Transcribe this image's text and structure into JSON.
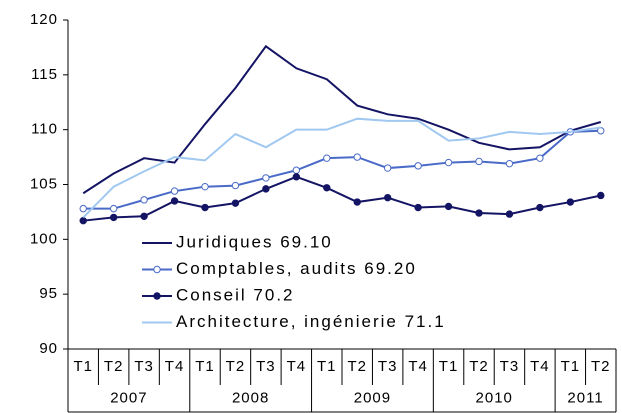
{
  "chart_data": {
    "type": "line",
    "categories": [
      "T1",
      "T2",
      "T3",
      "T4",
      "T1",
      "T2",
      "T3",
      "T4",
      "T1",
      "T2",
      "T3",
      "T4",
      "T1",
      "T2",
      "T3",
      "T4",
      "T1",
      "T2"
    ],
    "x_groups": [
      {
        "label": "2007",
        "count": 4
      },
      {
        "label": "2008",
        "count": 4
      },
      {
        "label": "2009",
        "count": 4
      },
      {
        "label": "2010",
        "count": 4
      },
      {
        "label": "2011",
        "count": 2
      }
    ],
    "ylim": [
      90,
      120
    ],
    "yticks": [
      90,
      95,
      100,
      105,
      110,
      115,
      120
    ],
    "series": [
      {
        "name": "Juridiques 69.10",
        "color": "#141464",
        "marker": "none",
        "values": [
          104.2,
          106.0,
          107.4,
          107.0,
          110.5,
          113.8,
          117.6,
          115.6,
          114.6,
          112.2,
          111.4,
          111.0,
          110.0,
          108.8,
          108.2,
          108.4,
          109.9,
          110.7
        ]
      },
      {
        "name": "Comptables, audits 69.20",
        "color": "#4a6ac8",
        "marker": "open",
        "values": [
          102.8,
          102.8,
          103.6,
          104.4,
          104.8,
          104.9,
          105.6,
          106.3,
          107.4,
          107.5,
          106.5,
          106.7,
          107.0,
          107.1,
          106.9,
          107.4,
          109.8,
          109.9
        ]
      },
      {
        "name": "Conseil 70.2",
        "color": "#141464",
        "marker": "filled",
        "values": [
          101.7,
          102.0,
          102.1,
          103.5,
          102.9,
          103.3,
          104.6,
          105.7,
          104.7,
          103.4,
          103.8,
          102.9,
          103.0,
          102.4,
          102.3,
          102.9,
          103.4,
          104.0
        ]
      },
      {
        "name": "Architecture, ingénierie 71.1",
        "color": "#a0c8f0",
        "marker": "none",
        "values": [
          102.0,
          104.8,
          106.2,
          107.5,
          107.2,
          109.6,
          108.4,
          110.0,
          110.0,
          111.0,
          110.8,
          110.8,
          109.0,
          109.2,
          109.8,
          109.6,
          109.8,
          110.2
        ]
      }
    ]
  }
}
